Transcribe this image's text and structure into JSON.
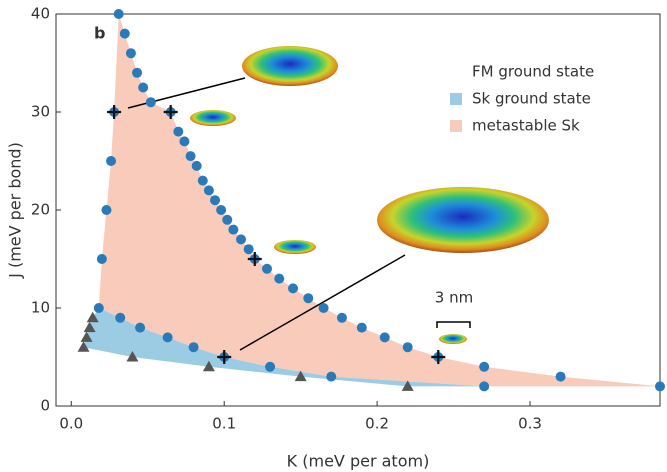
{
  "chart_data": {
    "type": "scatter",
    "panel_label": "b",
    "xlabel": "K (meV per atom)",
    "ylabel": "J (meV per bond)",
    "xlim": [
      -0.01,
      0.385
    ],
    "ylim": [
      0,
      40
    ],
    "xticks": [
      {
        "value": 0,
        "label": "0.0"
      },
      0.1,
      0.2,
      0.3
    ],
    "yticks": [
      0,
      10,
      20,
      30,
      40
    ],
    "legend": "upper right",
    "regions": [
      {
        "name": "FM ground state"
      },
      {
        "name": "Sk ground state",
        "color": "#9ccbe4"
      },
      {
        "name": "metastable Sk",
        "color": "#f8cbbb"
      }
    ],
    "series": [
      {
        "marker": "circle",
        "color": "#2a7ab9",
        "x": [
          0.018,
          0.032,
          0.045,
          0.063,
          0.08,
          0.1,
          0.13,
          0.17,
          0.27
        ],
        "y": [
          10,
          9,
          8,
          7,
          6,
          5,
          4,
          3,
          2
        ]
      },
      {
        "marker": "circle",
        "color": "#2a7ab9",
        "x": [
          0.02,
          0.023,
          0.026,
          0.028
        ],
        "y": [
          15,
          20,
          25,
          30
        ]
      },
      {
        "marker": "circle",
        "color": "#2a7ab9",
        "x": [
          0.031,
          0.035,
          0.039,
          0.043,
          0.047,
          0.052,
          0.065,
          0.07,
          0.074,
          0.078,
          0.082,
          0.086,
          0.09,
          0.094,
          0.098,
          0.102,
          0.106,
          0.111,
          0.116,
          0.12,
          0.128,
          0.136,
          0.145,
          0.155,
          0.165,
          0.177,
          0.19,
          0.205,
          0.22,
          0.24,
          0.27,
          0.32,
          0.385
        ],
        "y": [
          40,
          38,
          36,
          34,
          32.5,
          31,
          30,
          28,
          27,
          25.5,
          24.5,
          23,
          22,
          21,
          20,
          19,
          18,
          17,
          16,
          15,
          14,
          13,
          12,
          11,
          10,
          9,
          8,
          7,
          6,
          5,
          4,
          3,
          2
        ]
      },
      {
        "marker": "triangle",
        "color": "#555555",
        "x": [
          0.014,
          0.012,
          0.01,
          0.008,
          0.04,
          0.09,
          0.15,
          0.22
        ],
        "y": [
          9,
          8,
          7,
          6,
          5,
          4,
          3,
          2
        ]
      },
      {
        "marker": "cross",
        "color": "#111111",
        "x": [
          0.028,
          0.065,
          0.12,
          0.1,
          0.24
        ],
        "y": [
          30,
          30,
          15,
          5,
          5
        ]
      }
    ],
    "annotations": [
      "3 nm"
    ]
  }
}
